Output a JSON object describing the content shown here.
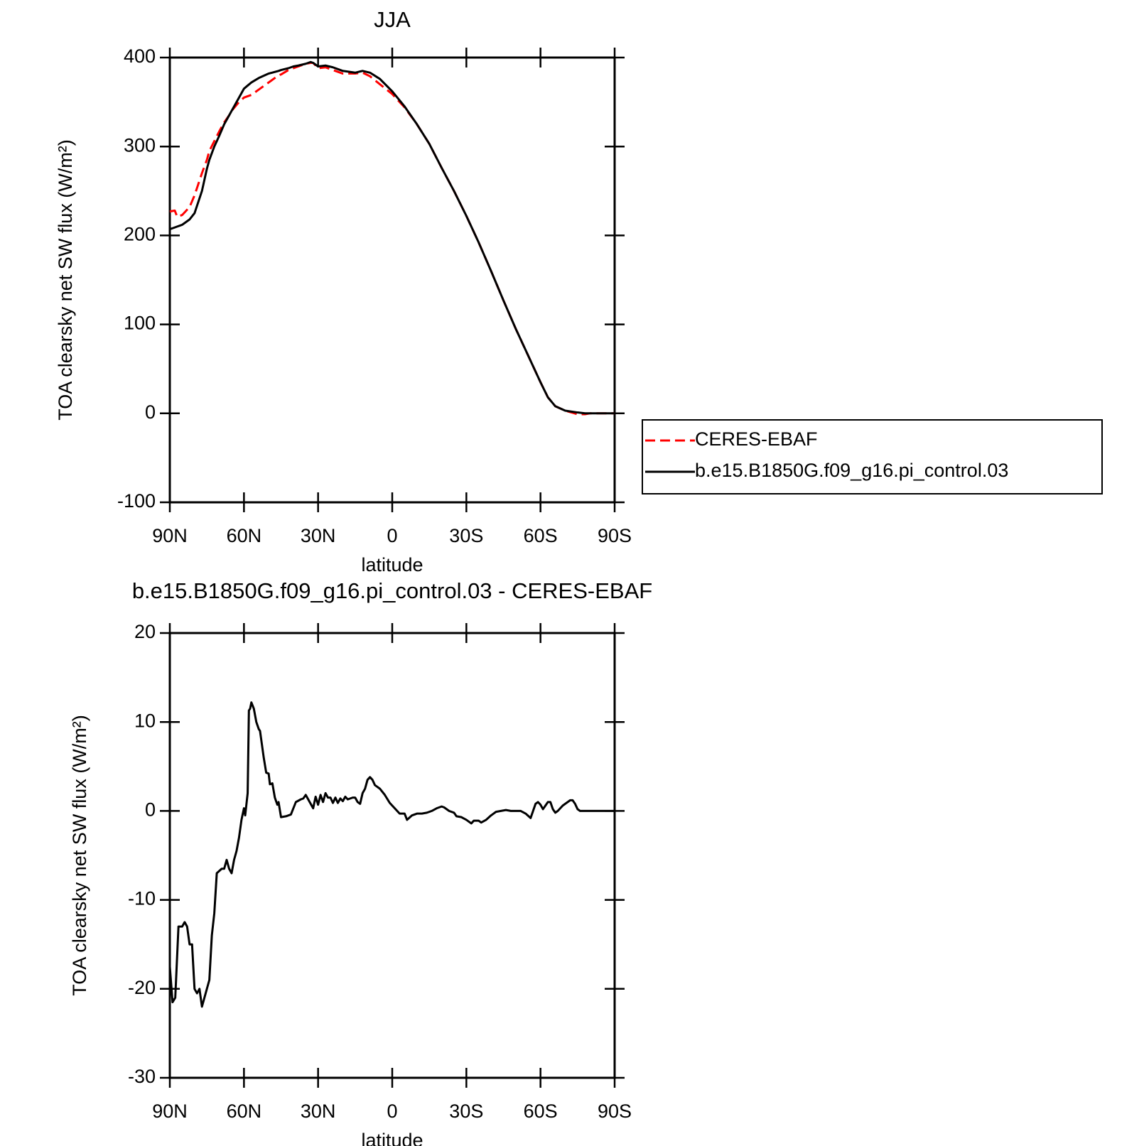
{
  "chart_data": [
    {
      "type": "line",
      "title": "JJA",
      "xlabel": "latitude",
      "ylabel": "TOA clearsky net SW flux (W/m²)",
      "x": [
        90,
        88,
        87,
        85,
        82,
        80,
        77,
        75,
        74,
        72,
        70,
        68,
        66,
        65,
        62,
        60,
        57,
        54,
        50,
        46,
        45,
        42,
        40,
        38,
        35,
        33,
        32,
        30,
        27,
        24,
        20,
        15,
        12,
        9,
        5,
        0,
        -5,
        -10,
        -15,
        -20,
        -25,
        -30,
        -35,
        -40,
        -45,
        -50,
        -55,
        -60,
        -63,
        -66,
        -70,
        -75,
        -78,
        -80,
        -90
      ],
      "series": [
        {
          "name": "CERES-EBAF",
          "color": "#ff0000",
          "line_style": "dashed",
          "values": [
            227,
            228,
            221,
            223,
            232,
            245,
            270,
            285,
            295,
            306,
            317,
            327,
            335,
            340,
            350,
            355,
            358,
            364,
            372,
            380,
            381,
            386,
            388,
            390,
            393,
            394,
            394,
            388,
            389,
            386,
            382,
            382,
            383,
            379,
            370,
            359,
            344,
            325,
            303,
            276,
            250,
            222,
            192,
            160,
            127,
            95,
            65,
            35,
            18,
            8,
            3,
            -1,
            -1,
            0,
            0
          ]
        },
        {
          "name": "b.e15.B1850G.f09_g16.pi_control.03",
          "color": "#000000",
          "line_style": "solid",
          "values": [
            207,
            209,
            210,
            212,
            218,
            225,
            250,
            275,
            285,
            300,
            312,
            325,
            335,
            340,
            355,
            365,
            372,
            377,
            382,
            385,
            386,
            388,
            390,
            391,
            393,
            395,
            394,
            390,
            391,
            389,
            385,
            383,
            385,
            383,
            376,
            362,
            345,
            325,
            303,
            276,
            250,
            222,
            192,
            160,
            127,
            95,
            65,
            35,
            18,
            8,
            3,
            1,
            0,
            0,
            0
          ]
        }
      ],
      "xlim": [
        90,
        -90
      ],
      "xticks": [
        {
          "value": 90,
          "label": "90N"
        },
        {
          "value": 60,
          "label": "60N"
        },
        {
          "value": 30,
          "label": "30N"
        },
        0,
        {
          "value": -30,
          "label": "30S"
        },
        {
          "value": -60,
          "label": "60S"
        },
        {
          "value": -90,
          "label": "90S"
        }
      ],
      "ylim": [
        -100,
        400
      ],
      "yticks": [
        -100,
        0,
        100,
        200,
        300,
        400
      ],
      "legend": "right"
    },
    {
      "type": "line",
      "title": "b.e15.B1850G.f09_g16.pi_control.03 - CERES-EBAF",
      "xlabel": "latitude",
      "ylabel": "TOA clearsky net SW flux (W/m²)",
      "x": [
        90,
        88.9,
        87.8,
        86.5,
        85,
        84,
        83,
        82,
        81,
        80,
        79,
        78,
        77,
        76,
        74,
        73,
        72,
        71,
        69,
        68,
        67,
        66,
        65,
        64,
        63,
        62,
        61,
        60,
        59.5,
        58.5,
        58,
        57.5,
        57,
        56,
        55,
        54,
        53.5,
        52,
        51,
        50,
        49.5,
        48.5,
        47.5,
        46.5,
        46,
        45,
        43,
        41,
        39,
        37,
        36,
        35,
        34,
        32,
        31,
        30,
        29,
        28,
        27,
        26,
        25,
        24,
        23,
        22,
        21,
        20,
        19,
        18,
        16,
        15,
        14,
        13,
        12,
        11,
        10,
        9,
        8,
        7,
        5,
        3,
        1,
        -1,
        -3,
        -5,
        -6,
        -8,
        -10,
        -12,
        -14,
        -16,
        -18,
        -20,
        -21,
        -23,
        -25,
        -26,
        -28,
        -30,
        -32,
        -33,
        -35,
        -36,
        -38,
        -40,
        -42,
        -44,
        -46,
        -48,
        -50,
        -52,
        -54,
        -56,
        -57,
        -58,
        -59,
        -60,
        -61,
        -62,
        -63,
        -64,
        -65,
        -66,
        -67,
        -69,
        -71,
        -72,
        -73,
        -74,
        -75,
        -76,
        -80,
        -90
      ],
      "series": [
        {
          "color": "#000000",
          "line_style": "solid",
          "values": [
            -17.5,
            -21.5,
            -21,
            -13,
            -13,
            -12.5,
            -13,
            -15,
            -15,
            -20,
            -20.5,
            -20,
            -22,
            -21,
            -19,
            -14,
            -11.5,
            -7,
            -6.5,
            -6.5,
            -5.5,
            -6.5,
            -7,
            -5.5,
            -4.5,
            -3,
            -1,
            0.3,
            -0.5,
            2,
            11.3,
            11.5,
            12.2,
            11.5,
            10,
            9.2,
            9,
            6,
            4.3,
            4.2,
            3,
            3.1,
            1.5,
            0.7,
            1,
            -0.7,
            -0.6,
            -0.4,
            1,
            1.3,
            1.4,
            1.8,
            1.3,
            0.3,
            1.6,
            0.7,
            1.8,
            1,
            2,
            1.5,
            1.5,
            0.9,
            1.5,
            0.9,
            1.4,
            1.1,
            1.6,
            1.3,
            1.5,
            1.5,
            1,
            0.8,
            2,
            2.5,
            3.5,
            3.8,
            3.5,
            2.9,
            2.5,
            1.8,
            0.9,
            0.3,
            -0.3,
            -0.3,
            -1,
            -0.5,
            -0.3,
            -0.3,
            -0.2,
            0,
            0.3,
            0.5,
            0.4,
            0,
            -0.2,
            -0.6,
            -0.7,
            -1,
            -1.4,
            -1.1,
            -1.1,
            -1.3,
            -1,
            -0.5,
            -0.1,
            0,
            0.1,
            0,
            0,
            0,
            -0.3,
            -0.8,
            0,
            0.8,
            1,
            0.7,
            0.2,
            0.6,
            1,
            1,
            0.2,
            -0.2,
            0,
            0.6,
            1,
            1.2,
            1.2,
            0.8,
            0.2,
            0,
            0,
            0
          ]
        }
      ],
      "xlim": [
        90,
        -90
      ],
      "xticks": [
        {
          "value": 90,
          "label": "90N"
        },
        {
          "value": 60,
          "label": "60N"
        },
        {
          "value": 30,
          "label": "30N"
        },
        0,
        {
          "value": -30,
          "label": "30S"
        },
        {
          "value": -60,
          "label": "60S"
        },
        {
          "value": -90,
          "label": "90S"
        }
      ],
      "ylim": [
        -30,
        20
      ],
      "yticks": [
        -30,
        -20,
        -10,
        0,
        10,
        20
      ]
    }
  ]
}
